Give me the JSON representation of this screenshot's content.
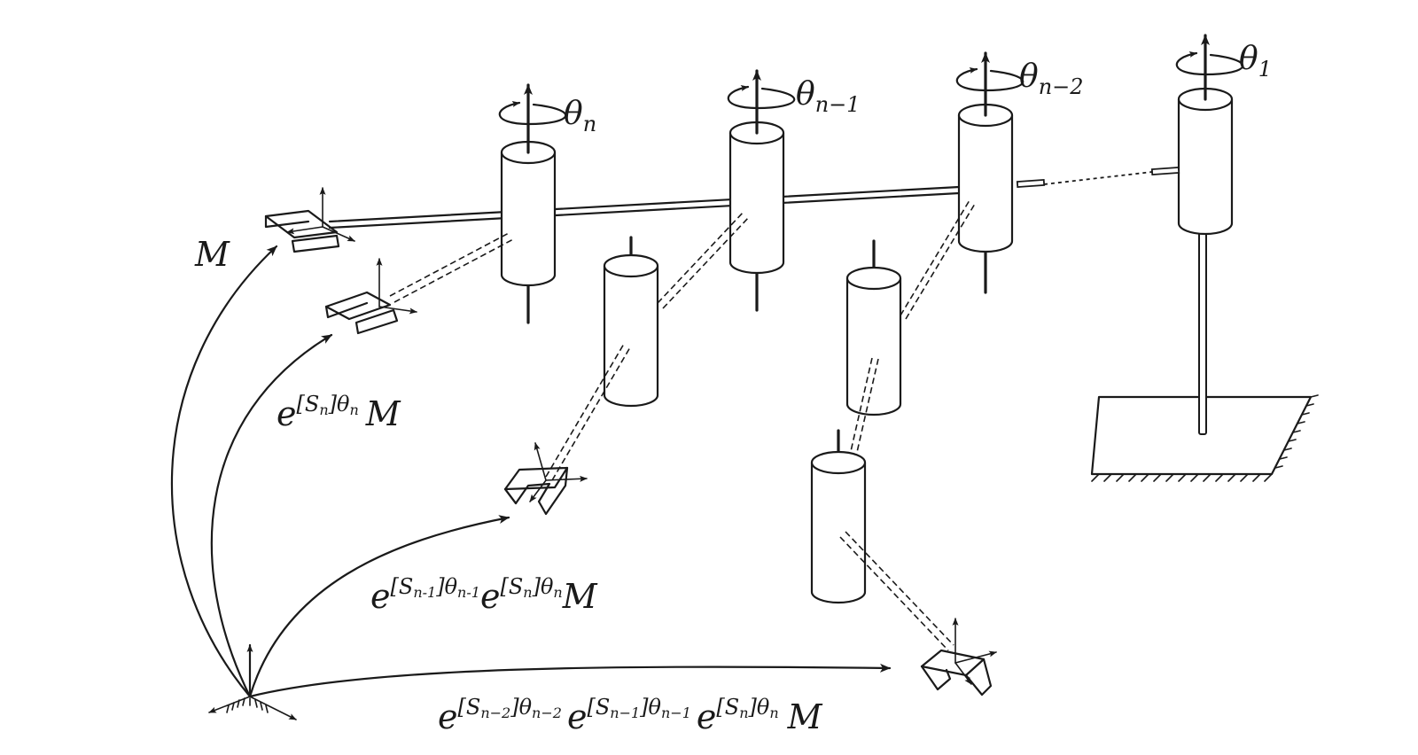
{
  "labels": {
    "theta_1": {
      "base": "θ",
      "sub": "1"
    },
    "theta_n2": {
      "base": "θ",
      "sub": "n−2"
    },
    "theta_n1": {
      "base": "θ",
      "sub": "n−1"
    },
    "theta_n": {
      "base": "θ",
      "sub": "n"
    },
    "M": "M",
    "e_n": {
      "e": "e",
      "S": "S",
      "Ssub": "n",
      "th": "θ",
      "thsub": "n",
      "M": "M"
    },
    "e_n1_n": {
      "e": "e",
      "S1": "S",
      "S1sub": "n-1",
      "th1": "θ",
      "th1sub": "n-1",
      "S2": "S",
      "S2sub": "n",
      "th2": "θ",
      "th2sub": "n",
      "M": "M"
    },
    "e_n2_n1_n": {
      "e": "e",
      "S1": "S",
      "S1sub": "n−2",
      "th1": "θ",
      "th1sub": "n−2",
      "S2": "S",
      "S2sub": "n−1",
      "th2": "θ",
      "th2sub": "n−1",
      "S3": "S",
      "S3sub": "n",
      "th3": "θ",
      "th3sub": "n",
      "M": "M"
    }
  }
}
